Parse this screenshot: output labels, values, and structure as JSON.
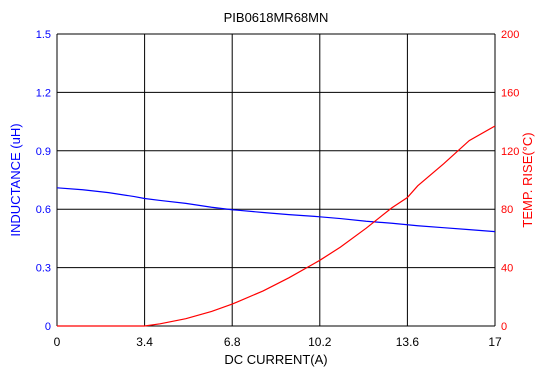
{
  "chart_data": {
    "type": "line",
    "title": "PIB0618MR68MN",
    "xlabel": "DC CURRENT(A)",
    "ylabel_left": "INDUCTANCE (uH)",
    "ylabel_right": "TEMP. RISE(°C)",
    "xlim": [
      0,
      17
    ],
    "ylim_left": [
      0,
      1.5
    ],
    "ylim_right": [
      0,
      200
    ],
    "x_ticks": [
      "0",
      "3.4",
      "6.8",
      "10.2",
      "13.6",
      "17"
    ],
    "y_left_ticks": [
      "0",
      "0.3",
      "0.6",
      "0.9",
      "1.2",
      "1.5"
    ],
    "y_right_ticks": [
      "0",
      "40",
      "80",
      "120",
      "160",
      "200"
    ],
    "grid": true,
    "colors": {
      "inductance": "#0000ff",
      "temp_rise": "#ff0000",
      "grid": "#000000"
    },
    "series": [
      {
        "axis": "left",
        "color": "#0000ff",
        "x": [
          0,
          1,
          2,
          3,
          3.4,
          4,
          5,
          6,
          6.8,
          7,
          8,
          9,
          10,
          10.2,
          11,
          12,
          13,
          13.6,
          14,
          15,
          16,
          17
        ],
        "y": [
          0.71,
          0.7,
          0.685,
          0.665,
          0.655,
          0.645,
          0.63,
          0.61,
          0.597,
          0.595,
          0.583,
          0.572,
          0.563,
          0.561,
          0.552,
          0.538,
          0.528,
          0.52,
          0.515,
          0.505,
          0.495,
          0.485
        ]
      },
      {
        "axis": "right",
        "color": "#ff0000",
        "x": [
          0,
          3.4,
          4,
          5,
          6,
          6.8,
          7,
          8,
          9,
          10,
          10.2,
          11,
          12,
          13,
          13.6,
          14,
          15,
          16,
          17
        ],
        "y": [
          0,
          0,
          1.5,
          5,
          10,
          15,
          16.5,
          24,
          33,
          43,
          45,
          54,
          67,
          81,
          88,
          96,
          111,
          127,
          137
        ]
      }
    ]
  }
}
